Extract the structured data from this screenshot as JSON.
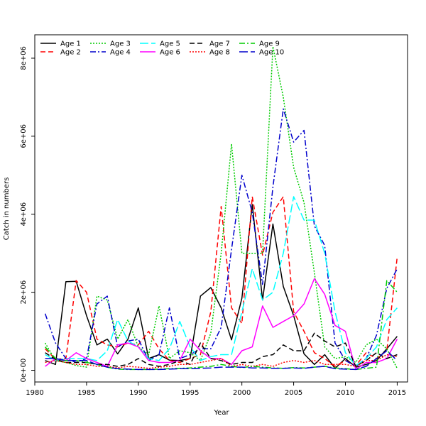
{
  "chart_data": {
    "type": "line",
    "xlabel": "Year",
    "ylabel": "Catch in numbers",
    "xlim": [
      1980,
      2016
    ],
    "ylim": [
      -300000,
      8600000
    ],
    "x_ticks": [
      1980,
      1985,
      1990,
      1995,
      2000,
      2005,
      2010,
      2015
    ],
    "y_ticks": [
      0,
      2000000,
      4000000,
      6000000,
      8000000
    ],
    "y_tick_labels": [
      "0e+00",
      "2e+06",
      "4e+06",
      "6e+06",
      "8e+06"
    ],
    "x": [
      1981,
      1982,
      1983,
      1984,
      1985,
      1986,
      1987,
      1988,
      1989,
      1990,
      1991,
      1992,
      1993,
      1994,
      1995,
      1996,
      1997,
      1998,
      1999,
      2000,
      2001,
      2002,
      2003,
      2004,
      2005,
      2006,
      2007,
      2008,
      2009,
      2010,
      2011,
      2012,
      2013,
      2014,
      2015
    ],
    "legend_position": "top-left",
    "series": [
      {
        "name": "Age 1",
        "color": "#000000",
        "dash": "solid",
        "values": [
          250000,
          150000,
          2270000,
          2280000,
          1400000,
          650000,
          800000,
          420000,
          800000,
          1600000,
          300000,
          400000,
          260000,
          250000,
          300000,
          1900000,
          2120000,
          1600000,
          780000,
          1850000,
          4250000,
          1800000,
          3750000,
          2150000,
          1400000,
          420000,
          150000,
          400000,
          50000,
          300000,
          80000,
          150000,
          250000,
          550000,
          870000
        ]
      },
      {
        "name": "Age 2",
        "color": "#ff0000",
        "dash": "7,4",
        "values": [
          550000,
          280000,
          300000,
          2300000,
          2000000,
          800000,
          650000,
          600000,
          700000,
          650000,
          1000000,
          550000,
          250000,
          200000,
          300000,
          400000,
          1500000,
          4200000,
          1600000,
          1200000,
          4450000,
          2950000,
          4050000,
          4450000,
          1500000,
          1000000,
          450000,
          300000,
          100000,
          250000,
          120000,
          450000,
          300000,
          500000,
          2900000
        ]
      },
      {
        "name": "Age 3",
        "color": "#00cc00",
        "dash": "2,2",
        "values": [
          700000,
          250000,
          200000,
          120000,
          80000,
          1900000,
          1800000,
          800000,
          1300000,
          600000,
          400000,
          1650000,
          300000,
          500000,
          450000,
          250000,
          950000,
          3000000,
          5800000,
          3000000,
          3000000,
          3000000,
          8300000,
          7000000,
          5200000,
          4300000,
          2500000,
          600000,
          300000,
          350000,
          200000,
          650000,
          800000,
          550000,
          50000
        ]
      },
      {
        "name": "Age 4",
        "color": "#0000cc",
        "dash": "8,3,2,3",
        "values": [
          1450000,
          700000,
          300000,
          200000,
          300000,
          1700000,
          1900000,
          600000,
          750000,
          800000,
          250000,
          400000,
          1600000,
          300000,
          400000,
          550000,
          550000,
          1100000,
          3100000,
          5000000,
          4050000,
          2200000,
          4700000,
          6700000,
          5850000,
          6150000,
          3700000,
          3200000,
          700000,
          250000,
          100000,
          300000,
          900000,
          2100000,
          2600000
        ]
      },
      {
        "name": "Age 5",
        "color": "#00ffff",
        "dash": "12,4",
        "values": [
          400000,
          250000,
          300000,
          300000,
          300000,
          250000,
          500000,
          1300000,
          750000,
          600000,
          300000,
          250000,
          550000,
          1250000,
          600000,
          250000,
          350000,
          400000,
          400000,
          1500000,
          2600000,
          1800000,
          2000000,
          3000000,
          4450000,
          3850000,
          3850000,
          3000000,
          1500000,
          450000,
          120000,
          300000,
          600000,
          1300000,
          1600000
        ]
      },
      {
        "name": "Age 6",
        "color": "#ff00ff",
        "dash": "solid",
        "values": [
          100000,
          300000,
          250000,
          450000,
          300000,
          200000,
          100000,
          650000,
          700000,
          600000,
          250000,
          200000,
          200000,
          250000,
          800000,
          500000,
          300000,
          300000,
          150000,
          500000,
          600000,
          1650000,
          1100000,
          1250000,
          1400000,
          1700000,
          2350000,
          1950000,
          1150000,
          1000000,
          20000,
          200000,
          200000,
          300000,
          800000
        ]
      },
      {
        "name": "Age 7",
        "color": "#000000",
        "dash": "7,4",
        "values": [
          450000,
          280000,
          200000,
          200000,
          200000,
          150000,
          150000,
          100000,
          150000,
          300000,
          150000,
          100000,
          150000,
          250000,
          150000,
          700000,
          300000,
          250000,
          150000,
          200000,
          200000,
          350000,
          400000,
          650000,
          500000,
          500000,
          950000,
          750000,
          600000,
          700000,
          100000,
          250000,
          450000,
          300000,
          400000
        ]
      },
      {
        "name": "Age 8",
        "color": "#ff0000",
        "dash": "2,2",
        "values": [
          200000,
          250000,
          200000,
          150000,
          150000,
          100000,
          100000,
          60000,
          100000,
          80000,
          50000,
          80000,
          100000,
          150000,
          150000,
          200000,
          250000,
          300000,
          100000,
          150000,
          100000,
          150000,
          100000,
          200000,
          250000,
          200000,
          250000,
          150000,
          150000,
          150000,
          100000,
          250000,
          250000,
          400000,
          350000
        ]
      },
      {
        "name": "Age 9",
        "color": "#00cc00",
        "dash": "8,3,2,3",
        "values": [
          600000,
          300000,
          250000,
          250000,
          200000,
          150000,
          80000,
          30000,
          20000,
          20000,
          20000,
          30000,
          40000,
          50000,
          60000,
          80000,
          100000,
          150000,
          100000,
          70000,
          100000,
          80000,
          60000,
          50000,
          70000,
          60000,
          80000,
          100000,
          60000,
          40000,
          20000,
          50000,
          80000,
          2300000,
          2000000
        ]
      },
      {
        "name": "Age 10",
        "color": "#0000cc",
        "dash": "12,4",
        "values": [
          300000,
          300000,
          250000,
          250000,
          250000,
          150000,
          80000,
          40000,
          30000,
          20000,
          20000,
          20000,
          30000,
          40000,
          40000,
          50000,
          60000,
          80000,
          80000,
          80000,
          60000,
          60000,
          50000,
          50000,
          60000,
          50000,
          80000,
          100000,
          40000,
          30000,
          20000,
          100000,
          300000,
          500000,
          250000
        ]
      }
    ]
  }
}
